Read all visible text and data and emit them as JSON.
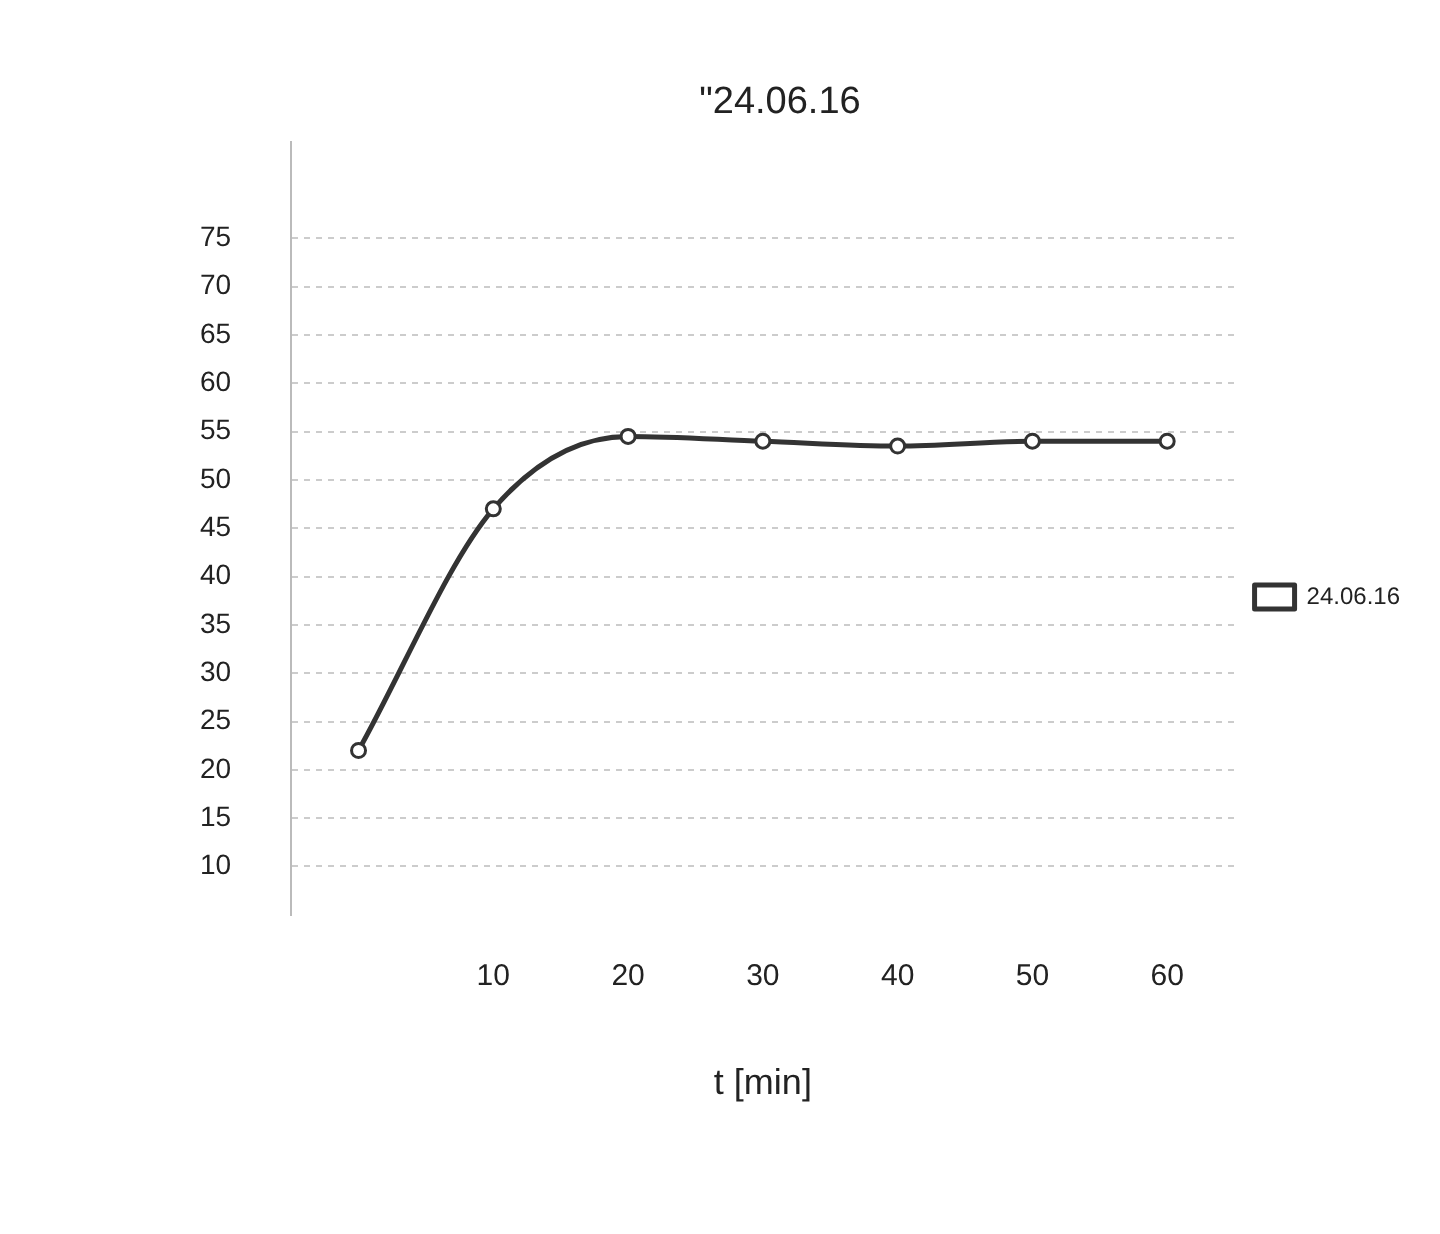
{
  "chart_data": {
    "type": "line",
    "title": "\"24.06.16",
    "xlabel": "t [min]",
    "categories": [
      null,
      "10",
      "20",
      "30",
      "40",
      "50",
      "60"
    ],
    "series": [
      {
        "name": "24.06.16",
        "color": "#333333",
        "values": [
          22,
          47,
          54.5,
          54,
          53.5,
          54,
          54
        ]
      }
    ],
    "ylim": [
      5,
      85
    ],
    "yticks": [
      10,
      15,
      20,
      25,
      30,
      35,
      40,
      45,
      50,
      55,
      60,
      65,
      70,
      75
    ],
    "grid": "y",
    "legend": "right",
    "marker": "circle",
    "line_style": "solid"
  }
}
